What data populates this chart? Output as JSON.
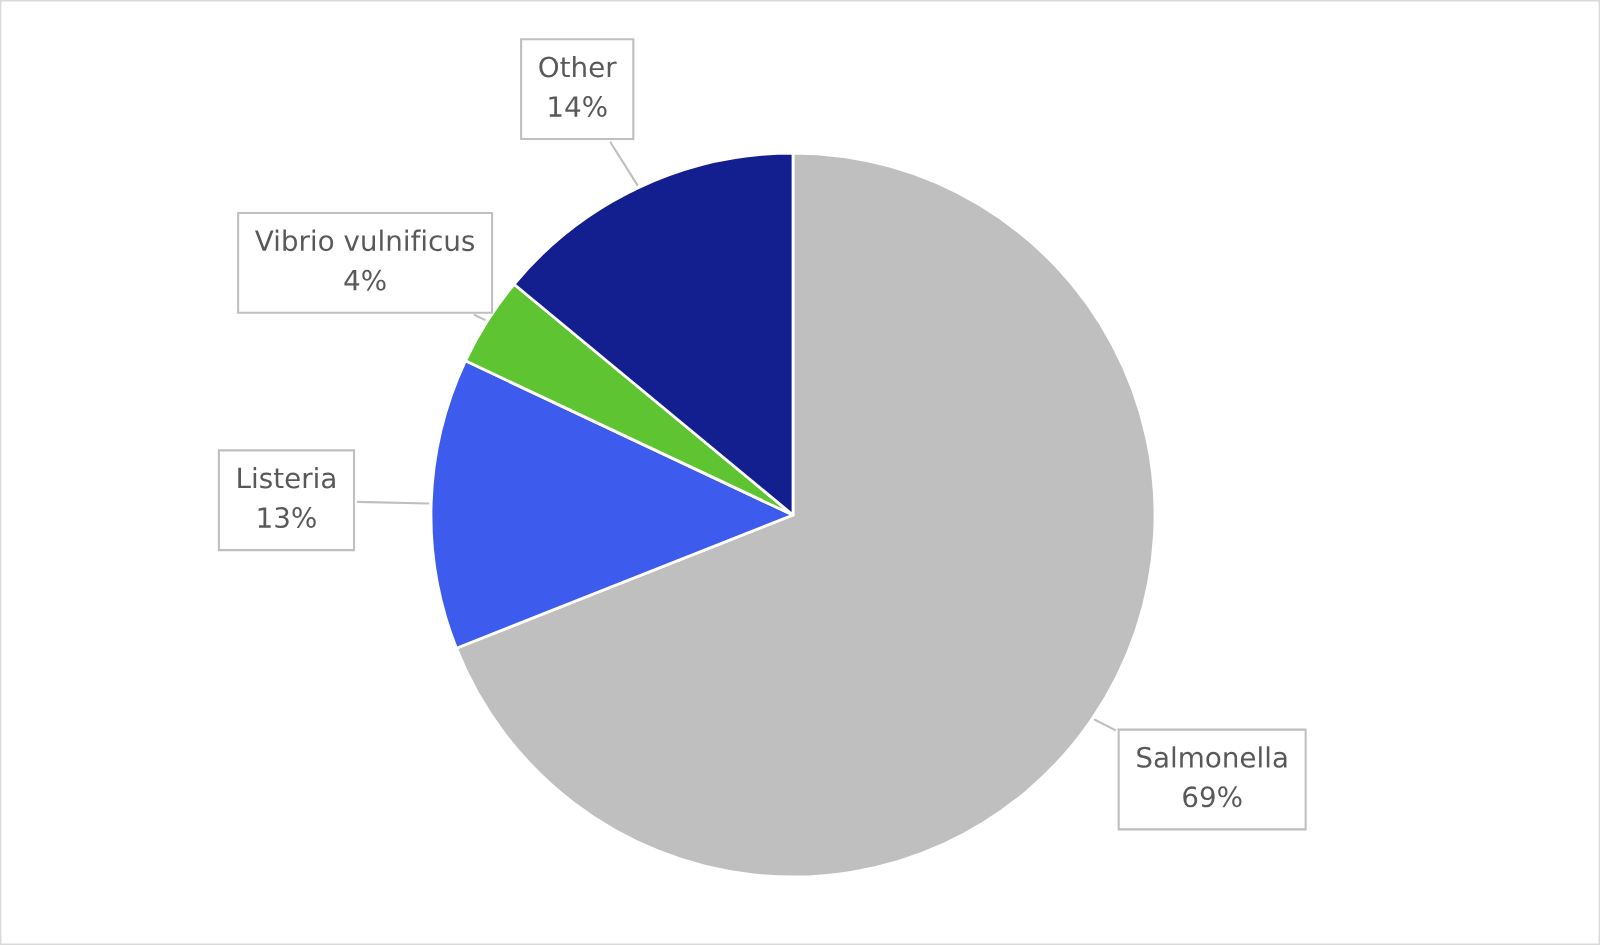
{
  "chart_data": {
    "type": "pie",
    "categories": [
      "Salmonella",
      "Listeria",
      "Vibrio vulnificus",
      "Other"
    ],
    "values": [
      69,
      13,
      4,
      14
    ],
    "colors": [
      "#bfbfbf",
      "#3d5ced",
      "#5fc431",
      "#131f8f"
    ],
    "value_labels": [
      "69%",
      "13%",
      "4%",
      "14%"
    ],
    "legend": false
  }
}
